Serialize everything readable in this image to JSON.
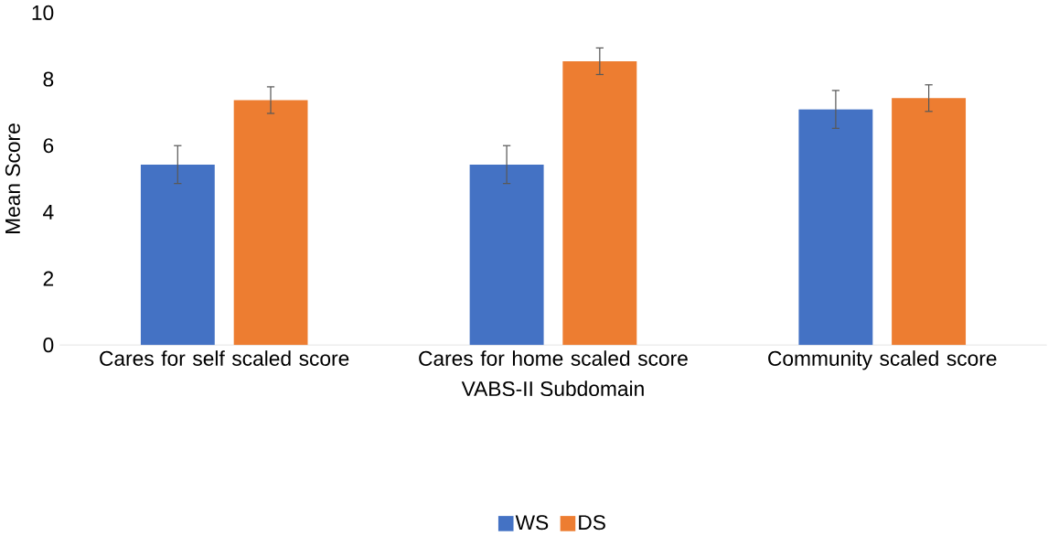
{
  "chart_data": {
    "type": "bar",
    "xlabel": "VABS-II Subdomain",
    "ylabel": "Mean Score",
    "categories": [
      "Cares for self scaled score",
      "Cares for home scaled score",
      "Community scaled score"
    ],
    "series": [
      {
        "name": "WS",
        "color": "#4472c4",
        "values": [
          5.43,
          5.43,
          7.09
        ],
        "errors": [
          0.57,
          0.57,
          0.57
        ]
      },
      {
        "name": "DS",
        "color": "#ed7d31",
        "values": [
          7.37,
          8.54,
          7.43
        ],
        "errors": [
          0.4,
          0.4,
          0.4
        ]
      }
    ],
    "ylim": [
      0,
      10
    ],
    "yticks": [
      0,
      2,
      4,
      6,
      8,
      10
    ],
    "grid": false,
    "legend": "bottom"
  }
}
